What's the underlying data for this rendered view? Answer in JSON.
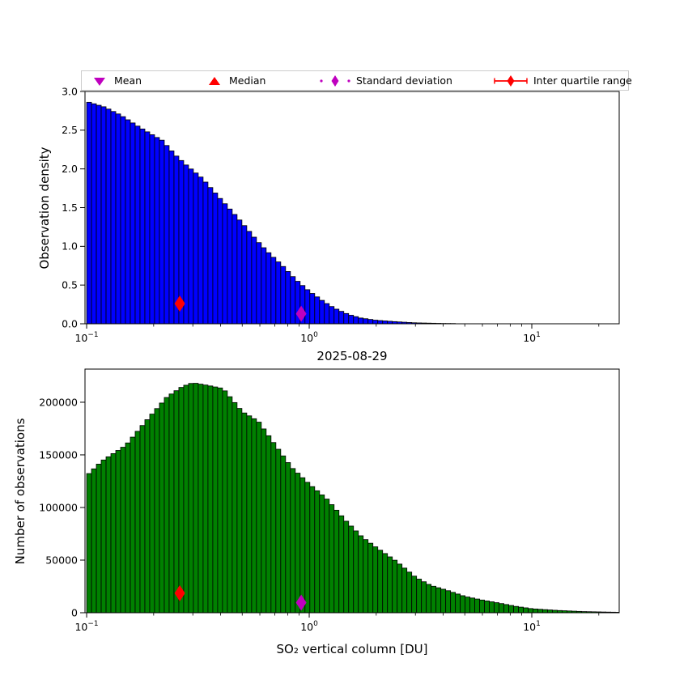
{
  "figure": {
    "title": "2025-08-29",
    "background": "#ffffff"
  },
  "legend": {
    "items": [
      {
        "label": "Mean",
        "marker": "triangle-down",
        "color": "#BF00BF"
      },
      {
        "label": "Median",
        "marker": "triangle-up",
        "color": "#FF0000"
      },
      {
        "label": "Standard deviation",
        "marker": "thin-diamond-dotted-line",
        "color": "#BF00BF"
      },
      {
        "label": "Inter quartile range",
        "marker": "thin-diamond-solid-line-caps",
        "color": "#FF0000"
      }
    ]
  },
  "chart_data": [
    {
      "type": "bar",
      "name": "observation-density-histogram",
      "ylabel": "Observation density",
      "bar_color": "#0000FF",
      "bar_edge_color": "#000000",
      "x_scale": "log",
      "xlim": [
        0.0983,
        24.7
      ],
      "ylim": [
        0,
        3.0
      ],
      "yticks": [
        0.0,
        0.5,
        1.0,
        1.5,
        2.0,
        2.5,
        3.0
      ],
      "ytick_labels": [
        "0.0",
        "0.5",
        "1.0",
        "1.5",
        "2.0",
        "2.5",
        "3.0"
      ],
      "xticks": [
        {
          "value": 0.1,
          "base": "10",
          "exp": "−1"
        },
        {
          "value": 1,
          "base": "10",
          "exp": "0"
        },
        {
          "value": 10,
          "base": "10",
          "exp": "1"
        }
      ],
      "bins": {
        "count": 110,
        "log10_start": -1.0,
        "log10_width": 0.0218
      },
      "envelope": [
        [
          0.1,
          2.87
        ],
        [
          0.12,
          2.8
        ],
        [
          0.143,
          2.69
        ],
        [
          0.17,
          2.55
        ],
        [
          0.2,
          2.43
        ],
        [
          0.218,
          2.37
        ],
        [
          0.25,
          2.18
        ],
        [
          0.28,
          2.05
        ],
        [
          0.33,
          1.88
        ],
        [
          0.4,
          1.61
        ],
        [
          0.45,
          1.45
        ],
        [
          0.5,
          1.3
        ],
        [
          0.58,
          1.08
        ],
        [
          0.65,
          0.93
        ],
        [
          0.77,
          0.73
        ],
        [
          0.87,
          0.57
        ],
        [
          1.0,
          0.42
        ],
        [
          1.17,
          0.28
        ],
        [
          1.3,
          0.2
        ],
        [
          1.5,
          0.12
        ],
        [
          1.7,
          0.075
        ],
        [
          2.0,
          0.045
        ],
        [
          2.5,
          0.025
        ],
        [
          3.0,
          0.012
        ],
        [
          4.0,
          0.004
        ],
        [
          6.0,
          0.001
        ],
        [
          25.0,
          0.0
        ]
      ],
      "markers": [
        {
          "name": "inter-quartile-range",
          "x": 0.262,
          "y": 0.26,
          "color": "#FF0000",
          "shape": "thin-diamond"
        },
        {
          "name": "standard-deviation",
          "x": 0.92,
          "y": 0.13,
          "color": "#BF00BF",
          "shape": "thin-diamond"
        }
      ]
    },
    {
      "type": "bar",
      "name": "number-of-observations-histogram",
      "xlabel": "SO₂ vertical column [DU]",
      "ylabel": "Number of observations",
      "bar_color": "#008000",
      "bar_edge_color": "#000000",
      "x_scale": "log",
      "xlim": [
        0.0983,
        24.7
      ],
      "ylim": [
        0,
        231500
      ],
      "yticks": [
        0,
        50000,
        100000,
        150000,
        200000
      ],
      "ytick_labels": [
        "0",
        "50000",
        "100000",
        "150000",
        "200000"
      ],
      "xticks": [
        {
          "value": 0.1,
          "base": "10",
          "exp": "−1"
        },
        {
          "value": 1,
          "base": "10",
          "exp": "0"
        },
        {
          "value": 10,
          "base": "10",
          "exp": "1"
        }
      ],
      "bins": {
        "count": 110,
        "log10_start": -1.0,
        "log10_width": 0.0218
      },
      "envelope": [
        [
          0.1,
          130000
        ],
        [
          0.117,
          144000
        ],
        [
          0.15,
          159000
        ],
        [
          0.19,
          185000
        ],
        [
          0.23,
          205000
        ],
        [
          0.27,
          215000
        ],
        [
          0.3,
          218500
        ],
        [
          0.35,
          216000
        ],
        [
          0.41,
          213000
        ],
        [
          0.5,
          191000
        ],
        [
          0.59,
          182000
        ],
        [
          0.7,
          160000
        ],
        [
          0.83,
          138500
        ],
        [
          1.0,
          122300
        ],
        [
          1.2,
          108000
        ],
        [
          1.45,
          88000
        ],
        [
          1.72,
          72300
        ],
        [
          2.0,
          62000
        ],
        [
          2.45,
          49200
        ],
        [
          3.0,
          33800
        ],
        [
          3.5,
          26100
        ],
        [
          4.2,
          21000
        ],
        [
          5.0,
          15500
        ],
        [
          6.0,
          12000
        ],
        [
          7.1,
          9200
        ],
        [
          8.5,
          6000
        ],
        [
          10.0,
          3800
        ],
        [
          13.0,
          2200
        ],
        [
          17.0,
          1100
        ],
        [
          21.0,
          700
        ],
        [
          25.0,
          400
        ]
      ],
      "markers": [
        {
          "name": "inter-quartile-range",
          "x": 0.262,
          "y": 18500,
          "color": "#FF0000",
          "shape": "thin-diamond"
        },
        {
          "name": "standard-deviation",
          "x": 0.92,
          "y": 9600,
          "color": "#BF00BF",
          "shape": "thin-diamond"
        }
      ]
    }
  ]
}
